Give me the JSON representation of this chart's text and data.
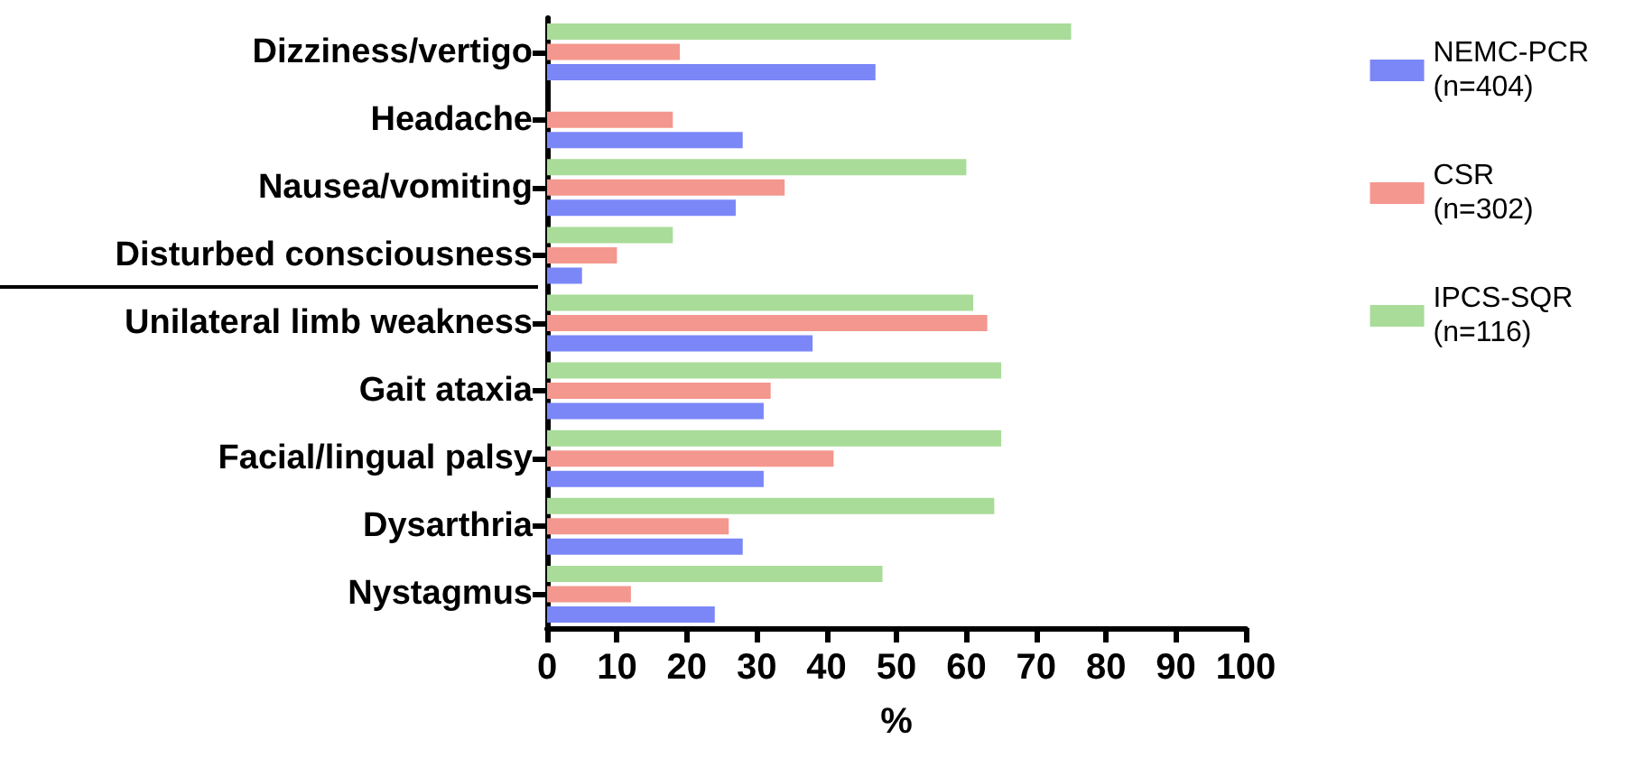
{
  "chart_data": {
    "type": "bar",
    "orientation": "horizontal",
    "xlabel": "%",
    "categories": [
      "Dizziness/vertigo",
      "Headache",
      "Nausea/vomiting",
      "Disturbed consciousness",
      "Unilateral limb weakness",
      "Gait ataxia",
      "Facial/lingual palsy",
      "Dysarthria",
      "Nystagmus"
    ],
    "series": [
      {
        "name": "NEMC-PCR\n(n=404)",
        "color": "#7b87f7",
        "values": [
          47,
          28,
          27,
          5,
          38,
          31,
          31,
          28,
          24
        ]
      },
      {
        "name": "CSR\n(n=302)",
        "color": "#f4978e",
        "values": [
          19,
          18,
          34,
          10,
          63,
          32,
          41,
          26,
          12
        ]
      },
      {
        "name": "IPCS-SQR\n(n=116)",
        "color": "#a8dc98",
        "values": [
          75,
          null,
          60,
          18,
          61,
          65,
          65,
          64,
          48
        ]
      }
    ],
    "xlim": [
      0,
      100
    ],
    "xticks": [
      0,
      10,
      20,
      30,
      40,
      50,
      60,
      70,
      80,
      90,
      100
    ],
    "grid": false,
    "legend": "right"
  }
}
